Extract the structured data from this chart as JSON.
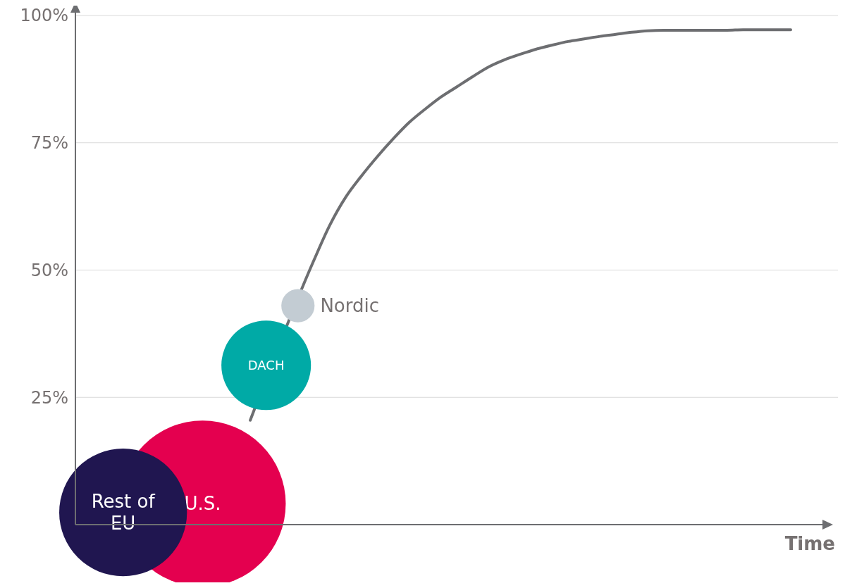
{
  "chart_data": {
    "type": "line",
    "xlabel": "Time",
    "categories": [
      null,
      null,
      null,
      null,
      null,
      null,
      null,
      null,
      null,
      null,
      null,
      null,
      null,
      null,
      null,
      null,
      null,
      null,
      null,
      null,
      null,
      null,
      null,
      null,
      null,
      null,
      null,
      null,
      null,
      null,
      null,
      null,
      null,
      null,
      null,
      null,
      null,
      null,
      null,
      null,
      null,
      null,
      null,
      null,
      null,
      null
    ],
    "series": [
      {
        "type": "line",
        "color": "#6d6e71",
        "values": [
          null,
          null,
          null,
          null,
          null,
          null,
          null,
          null,
          null,
          null,
          null,
          20.5,
          null,
          null,
          null,
          51.9,
          58.8,
          64.3,
          68.5,
          72.3,
          75.8,
          79,
          81.6,
          84,
          86,
          88,
          89.9,
          91.3,
          92.4,
          93.4,
          94.2,
          94.9,
          95.4,
          95.9,
          96.3,
          96.7,
          97,
          97.1,
          97.1,
          97.1,
          97.1,
          97.1,
          97.2,
          97.2,
          97.2,
          97.2
        ]
      },
      {
        "type": "bubble",
        "name": "Nordic",
        "color": "#c3ccd3",
        "values": [
          null,
          null,
          null,
          null,
          null,
          null,
          null,
          null,
          null,
          null,
          null,
          null,
          null,
          null,
          43,
          null,
          null,
          null,
          null,
          null,
          null,
          null,
          null,
          null,
          null,
          null,
          null,
          null,
          null,
          null,
          null,
          null,
          null,
          null,
          null,
          null,
          null,
          null,
          null,
          null,
          null,
          null,
          null,
          null,
          null,
          null
        ],
        "sizes": [
          null,
          null,
          null,
          null,
          null,
          null,
          null,
          null,
          null,
          null,
          null,
          null,
          null,
          null,
          0.04,
          null,
          null,
          null,
          null,
          null,
          null,
          null,
          null,
          null,
          null,
          null,
          null,
          null,
          null,
          null,
          null,
          null,
          null,
          null,
          null,
          null,
          null,
          null,
          null,
          null,
          null,
          null,
          null,
          null,
          null,
          null
        ]
      },
      {
        "type": "bubble",
        "name": "DACH",
        "color": "#00aaa6",
        "values": [
          null,
          null,
          null,
          null,
          null,
          null,
          null,
          null,
          null,
          null,
          null,
          null,
          31.3,
          null,
          null,
          null,
          null,
          null,
          null,
          null,
          null,
          null,
          null,
          null,
          null,
          null,
          null,
          null,
          null,
          null,
          null,
          null,
          null,
          null,
          null,
          null,
          null,
          null,
          null,
          null,
          null,
          null,
          null,
          null,
          null,
          null
        ],
        "sizes": [
          null,
          null,
          null,
          null,
          null,
          null,
          null,
          null,
          null,
          null,
          null,
          null,
          0.29,
          null,
          null,
          null,
          null,
          null,
          null,
          null,
          null,
          null,
          null,
          null,
          null,
          null,
          null,
          null,
          null,
          null,
          null,
          null,
          null,
          null,
          null,
          null,
          null,
          null,
          null,
          null,
          null,
          null,
          null,
          null,
          null,
          null
        ]
      },
      {
        "type": "bubble",
        "name": "U.S.",
        "color": "#e4004f",
        "values": [
          null,
          null,
          null,
          null,
          null,
          null,
          null,
          null,
          4.1,
          null,
          null,
          null,
          null,
          null,
          null,
          null,
          null,
          null,
          null,
          null,
          null,
          null,
          null,
          null,
          null,
          null,
          null,
          null,
          null,
          null,
          null,
          null,
          null,
          null,
          null,
          null,
          null,
          null,
          null,
          null,
          null,
          null,
          null,
          null,
          null,
          null
        ],
        "sizes": [
          null,
          null,
          null,
          null,
          null,
          null,
          null,
          null,
          1,
          null,
          null,
          null,
          null,
          null,
          null,
          null,
          null,
          null,
          null,
          null,
          null,
          null,
          null,
          null,
          null,
          null,
          null,
          null,
          null,
          null,
          null,
          null,
          null,
          null,
          null,
          null,
          null,
          null,
          null,
          null,
          null,
          null,
          null,
          null,
          null,
          null
        ]
      },
      {
        "type": "bubble",
        "name": "Rest of EU",
        "color": "#201650",
        "values": [
          null,
          null,
          null,
          2.4,
          null,
          null,
          null,
          null,
          null,
          null,
          null,
          null,
          null,
          null,
          null,
          null,
          null,
          null,
          null,
          null,
          null,
          null,
          null,
          null,
          null,
          null,
          null,
          null,
          null,
          null,
          null,
          null,
          null,
          null,
          null,
          null,
          null,
          null,
          null,
          null,
          null,
          null,
          null,
          null,
          null,
          null
        ],
        "sizes": [
          null,
          null,
          null,
          0.59,
          null,
          null,
          null,
          null,
          null,
          null,
          null,
          null,
          null,
          null,
          null,
          null,
          null,
          null,
          null,
          null,
          null,
          null,
          null,
          null,
          null,
          null,
          null,
          null,
          null,
          null,
          null,
          null,
          null,
          null,
          null,
          null,
          null,
          null,
          null,
          null,
          null,
          null,
          null,
          null,
          null,
          null
        ]
      }
    ],
    "ylim": [
      0,
      100
    ],
    "yticks": [
      {
        "value": 25,
        "label": "25%"
      },
      {
        "value": 50,
        "label": "50%"
      },
      {
        "value": 75,
        "label": "75%"
      },
      {
        "value": 100,
        "label": "100%"
      }
    ],
    "grid": "y",
    "tick_labels": "y",
    "legend": false
  }
}
